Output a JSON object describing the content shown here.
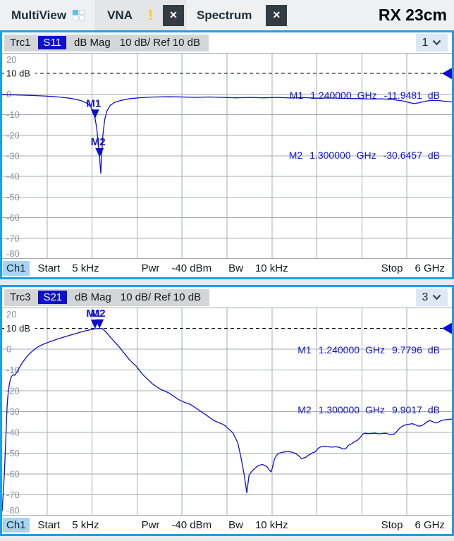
{
  "colors": {
    "accent_blue": "#1e9fe8",
    "trace_blue": "#0d10cc",
    "grid": "#a3acb5",
    "axis_label": "#8b949c",
    "ref_line": "#000000",
    "alert_yellow": "#f2cf17",
    "channel_chip": "#a7d4f2"
  },
  "tab_bar": {
    "multiview_label": "MultiView",
    "vna_tab": "VNA",
    "vna_alert": "!",
    "spectrum_tab": "Spectrum",
    "close_glyph": "✕",
    "setup_title": "RX 23cm"
  },
  "windows": [
    {
      "trace_label": "Trc1",
      "parameter": "S11",
      "format": "dB Mag",
      "scale_label": "10 dB/ Ref 10 dB",
      "window_number": "1",
      "readouts": [
        {
          "name": "M1",
          "freq": "1.240000",
          "freq_unit": "GHz",
          "value": "-11.9481",
          "value_unit": "dB"
        },
        {
          "name": "M2",
          "freq": "1.300000",
          "freq_unit": "GHz",
          "value": "-30.6457",
          "value_unit": "dB"
        }
      ],
      "footer": {
        "channel": "Ch1",
        "start_label": "Start",
        "start_value": "5 kHz",
        "pwr_label": "Pwr",
        "pwr_value": "-40 dBm",
        "bw_label": "Bw",
        "bw_value": "10 kHz",
        "stop_label": "Stop",
        "stop_value": "6 GHz"
      }
    },
    {
      "trace_label": "Trc3",
      "parameter": "S21",
      "format": "dB Mag",
      "scale_label": "10 dB/ Ref 10 dB",
      "window_number": "3",
      "readouts": [
        {
          "name": "M1",
          "freq": "1.240000",
          "freq_unit": "GHz",
          "value": "9.7796",
          "value_unit": "dB"
        },
        {
          "name": "M2",
          "freq": "1.300000",
          "freq_unit": "GHz",
          "value": "9.9017",
          "value_unit": "dB"
        }
      ],
      "footer": {
        "channel": "Ch1",
        "start_label": "Start",
        "start_value": "5 kHz",
        "pwr_label": "Pwr",
        "pwr_value": "-40 dBm",
        "bw_label": "Bw",
        "bw_value": "10 kHz",
        "stop_label": "Stop",
        "stop_value": "6 GHz"
      }
    }
  ],
  "chart_data": [
    {
      "type": "line",
      "title": "Trc1 S11 dB Mag 10 dB/ Ref 10 dB",
      "xlabel": "Frequency, Start 5 kHz to Stop 6 GHz, linear",
      "ylabel": "dB",
      "x_axis": {
        "start": "5 kHz",
        "stop": "6 GHz",
        "max_ghz": 6,
        "divisions": 10
      },
      "y_axis": {
        "max": 20,
        "min": -80,
        "step": 10,
        "tick_labels": [
          "20",
          "10 dB",
          "0",
          "-10",
          "-20",
          "-30",
          "-40",
          "-50",
          "-60",
          "-70",
          "-80"
        ],
        "ref_label_index": 1
      },
      "ref_level_db": 10,
      "grid": true,
      "legend": false,
      "markers": [
        {
          "name": "M1",
          "freq_ghz": 1.24,
          "db": -11.9481
        },
        {
          "name": "M2",
          "freq_ghz": 1.3,
          "db": -30.6457
        }
      ],
      "series": [
        {
          "name": "S11 dB Mag",
          "color": "#0d10cc",
          "points": [
            [
              0.0,
              -0.3
            ],
            [
              0.03,
              -0.4
            ],
            [
              0.06,
              -0.6
            ],
            [
              0.09,
              -0.9
            ],
            [
              0.115,
              -1.2
            ],
            [
              0.135,
              -1.6
            ],
            [
              0.15,
              -2.0
            ],
            [
              0.165,
              -2.6
            ],
            [
              0.178,
              -3.4
            ],
            [
              0.188,
              -4.4
            ],
            [
              0.196,
              -5.8
            ],
            [
              0.202,
              -8.0
            ],
            [
              0.2067,
              -11.95
            ],
            [
              0.21,
              -16.0
            ],
            [
              0.213,
              -22.0
            ],
            [
              0.2167,
              -30.65
            ],
            [
              0.2185,
              -36.0
            ],
            [
              0.2195,
              -38.5
            ],
            [
              0.221,
              -31.0
            ],
            [
              0.224,
              -20.0
            ],
            [
              0.228,
              -12.5
            ],
            [
              0.233,
              -8.2
            ],
            [
              0.24,
              -5.6
            ],
            [
              0.25,
              -4.0
            ],
            [
              0.265,
              -3.0
            ],
            [
              0.285,
              -2.2
            ],
            [
              0.31,
              -1.7
            ],
            [
              0.34,
              -1.4
            ],
            [
              0.37,
              -1.3
            ],
            [
              0.4,
              -1.4
            ],
            [
              0.43,
              -1.6
            ],
            [
              0.46,
              -1.4
            ],
            [
              0.49,
              -1.6
            ],
            [
              0.52,
              -1.8
            ],
            [
              0.55,
              -1.6
            ],
            [
              0.58,
              -1.8
            ],
            [
              0.61,
              -1.6
            ],
            [
              0.64,
              -1.9
            ],
            [
              0.67,
              -1.7
            ],
            [
              0.7,
              -2.0
            ],
            [
              0.73,
              -1.9
            ],
            [
              0.76,
              -2.1
            ],
            [
              0.79,
              -2.2
            ],
            [
              0.82,
              -2.4
            ],
            [
              0.845,
              -2.3
            ],
            [
              0.87,
              -2.7
            ],
            [
              0.89,
              -3.3
            ],
            [
              0.905,
              -4.1
            ],
            [
              0.915,
              -4.6
            ],
            [
              0.925,
              -4.3
            ],
            [
              0.94,
              -3.5
            ],
            [
              0.955,
              -3.0
            ],
            [
              0.97,
              -3.1
            ],
            [
              0.985,
              -3.5
            ],
            [
              1.0,
              -3.8
            ]
          ]
        }
      ]
    },
    {
      "type": "line",
      "title": "Trc3 S21 dB Mag 10 dB/ Ref 10 dB",
      "xlabel": "Frequency, Start 5 kHz to Stop 6 GHz, linear",
      "ylabel": "dB",
      "x_axis": {
        "start": "5 kHz",
        "stop": "6 GHz",
        "max_ghz": 6,
        "divisions": 10
      },
      "y_axis": {
        "max": 20,
        "min": -80,
        "step": 10,
        "tick_labels": [
          "20",
          "10 dB",
          "0",
          "-10",
          "-20",
          "-30",
          "-40",
          "-50",
          "-60",
          "-70",
          "-80"
        ],
        "ref_label_index": 1
      },
      "ref_level_db": 10,
      "grid": true,
      "legend": false,
      "markers": [
        {
          "name": "M1",
          "freq_ghz": 1.24,
          "db": 9.7796
        },
        {
          "name": "M2",
          "freq_ghz": 1.3,
          "db": 9.9017
        }
      ],
      "series": [
        {
          "name": "S21 dB Mag",
          "color": "#0d10cc",
          "points": [
            [
              0.0,
              -78
            ],
            [
              0.005,
              -60
            ],
            [
              0.008,
              -44
            ],
            [
              0.011,
              -28
            ],
            [
              0.013,
              -22
            ],
            [
              0.016,
              -17
            ],
            [
              0.019,
              -14
            ],
            [
              0.022,
              -12.8
            ],
            [
              0.025,
              -12.2
            ],
            [
              0.028,
              -12.6
            ],
            [
              0.031,
              -11.6
            ],
            [
              0.036,
              -9.8
            ],
            [
              0.042,
              -7.5
            ],
            [
              0.05,
              -5.0
            ],
            [
              0.058,
              -2.8
            ],
            [
              0.068,
              -0.8
            ],
            [
              0.078,
              0.9
            ],
            [
              0.09,
              2.2
            ],
            [
              0.105,
              3.5
            ],
            [
              0.125,
              5.0
            ],
            [
              0.145,
              6.3
            ],
            [
              0.165,
              7.6
            ],
            [
              0.185,
              8.8
            ],
            [
              0.2,
              9.5
            ],
            [
              0.212,
              9.9
            ],
            [
              0.222,
              10.0
            ],
            [
              0.23,
              8.5
            ],
            [
              0.242,
              5.4
            ],
            [
              0.261,
              0.9
            ],
            [
              0.282,
              -4.8
            ],
            [
              0.299,
              -8.4
            ],
            [
              0.313,
              -12.3
            ],
            [
              0.335,
              -16.8
            ],
            [
              0.352,
              -19.3
            ],
            [
              0.36,
              -20.0
            ],
            [
              0.371,
              -21.1
            ],
            [
              0.382,
              -22.7
            ],
            [
              0.392,
              -24.2
            ],
            [
              0.398,
              -24.8
            ],
            [
              0.407,
              -25.7
            ],
            [
              0.418,
              -26.5
            ],
            [
              0.429,
              -28.0
            ],
            [
              0.439,
              -29.6
            ],
            [
              0.45,
              -31.1
            ],
            [
              0.461,
              -32.8
            ],
            [
              0.47,
              -34.2
            ],
            [
              0.481,
              -35.3
            ],
            [
              0.492,
              -36.2
            ],
            [
              0.497,
              -37.0
            ],
            [
              0.513,
              -40.2
            ],
            [
              0.524,
              -45.0
            ],
            [
              0.531,
              -52.0
            ],
            [
              0.538,
              -60.0
            ],
            [
              0.542,
              -66.0
            ],
            [
              0.544,
              -69.0
            ],
            [
              0.549,
              -60.5
            ],
            [
              0.555,
              -58.8
            ],
            [
              0.56,
              -57.7
            ],
            [
              0.569,
              -56.0
            ],
            [
              0.579,
              -55.4
            ],
            [
              0.589,
              -56.5
            ],
            [
              0.593,
              -57.8
            ],
            [
              0.598,
              -59.0
            ],
            [
              0.601,
              -57.0
            ],
            [
              0.605,
              -53.2
            ],
            [
              0.61,
              -51.0
            ],
            [
              0.616,
              -50.0
            ],
            [
              0.627,
              -49.4
            ],
            [
              0.637,
              -49.2
            ],
            [
              0.645,
              -49.6
            ],
            [
              0.653,
              -50.2
            ],
            [
              0.659,
              -51.2
            ],
            [
              0.666,
              -52.6
            ],
            [
              0.675,
              -52.0
            ],
            [
              0.681,
              -51.0
            ],
            [
              0.689,
              -50.0
            ],
            [
              0.697,
              -49.2
            ],
            [
              0.703,
              -47.6
            ],
            [
              0.709,
              -46.9
            ],
            [
              0.715,
              -46.7
            ],
            [
              0.723,
              -46.9
            ],
            [
              0.733,
              -47.1
            ],
            [
              0.742,
              -46.9
            ],
            [
              0.75,
              -47.2
            ],
            [
              0.756,
              -47.8
            ],
            [
              0.761,
              -48.0
            ],
            [
              0.766,
              -47.4
            ],
            [
              0.77,
              -46.2
            ],
            [
              0.777,
              -45.5
            ],
            [
              0.783,
              -44.5
            ],
            [
              0.789,
              -43.9
            ],
            [
              0.794,
              -43.0
            ],
            [
              0.799,
              -41.7
            ],
            [
              0.802,
              -40.8
            ],
            [
              0.807,
              -40.4
            ],
            [
              0.813,
              -40.6
            ],
            [
              0.821,
              -40.5
            ],
            [
              0.829,
              -40.4
            ],
            [
              0.838,
              -40.7
            ],
            [
              0.846,
              -40.5
            ],
            [
              0.854,
              -40.4
            ],
            [
              0.86,
              -40.9
            ],
            [
              0.865,
              -41.2
            ],
            [
              0.87,
              -41.0
            ],
            [
              0.876,
              -40.0
            ],
            [
              0.88,
              -38.9
            ],
            [
              0.885,
              -37.8
            ],
            [
              0.89,
              -37.0
            ],
            [
              0.898,
              -36.3
            ],
            [
              0.904,
              -36.1
            ],
            [
              0.912,
              -35.8
            ],
            [
              0.918,
              -36.3
            ],
            [
              0.925,
              -36.9
            ],
            [
              0.929,
              -37.0
            ],
            [
              0.934,
              -36.6
            ],
            [
              0.94,
              -35.8
            ],
            [
              0.945,
              -34.9
            ],
            [
              0.951,
              -34.3
            ],
            [
              0.956,
              -34.7
            ],
            [
              0.961,
              -35.2
            ],
            [
              0.965,
              -35.5
            ],
            [
              0.972,
              -34.9
            ],
            [
              0.976,
              -34.3
            ],
            [
              0.983,
              -34.0
            ],
            [
              0.991,
              -33.8
            ],
            [
              1.0,
              -33.6
            ]
          ]
        }
      ]
    }
  ]
}
